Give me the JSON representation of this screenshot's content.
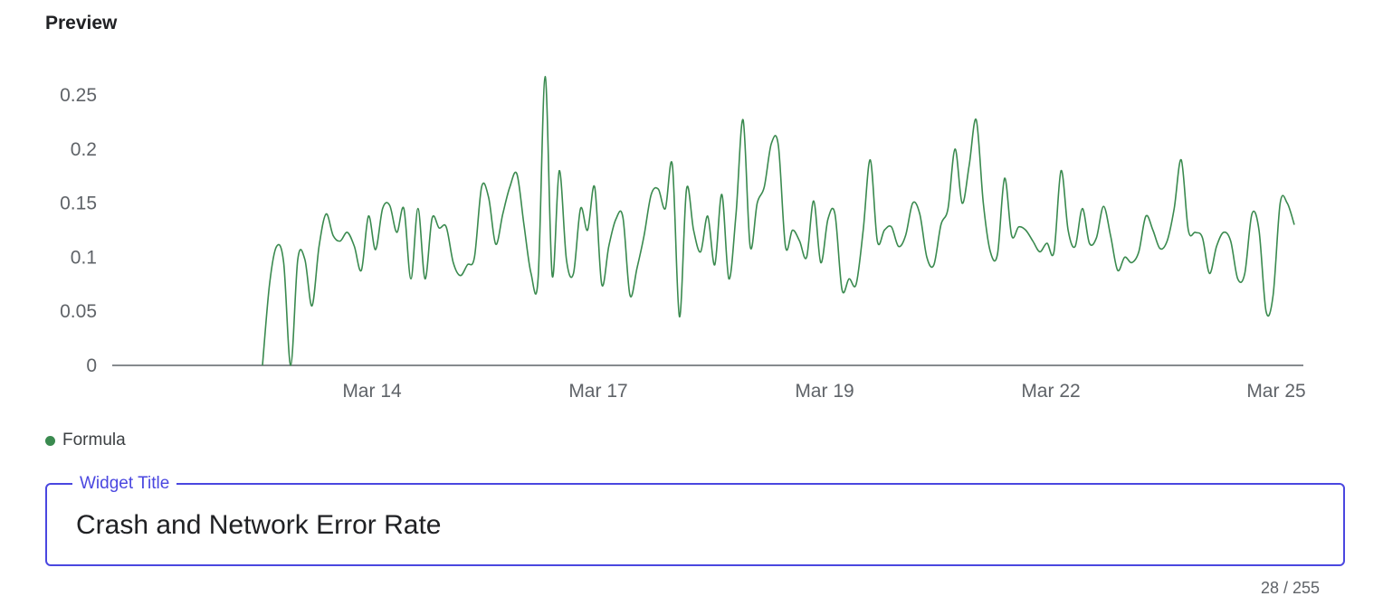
{
  "preview": {
    "title": "Preview"
  },
  "chart_data": {
    "type": "line",
    "title": "",
    "xlabel": "",
    "ylabel": "",
    "x_tick_labels": [
      "Mar 14",
      "Mar 17",
      "Mar 19",
      "Mar 22",
      "Mar 25"
    ],
    "y_tick_labels": [
      "0",
      "0.05",
      "0.1",
      "0.15",
      "0.2",
      "0.25"
    ],
    "ylim": [
      0,
      0.27
    ],
    "grid": false,
    "legend_position": "bottom-left",
    "series": [
      {
        "name": "Formula",
        "color": "#3a8a4f",
        "values": [
          0,
          0,
          0,
          0,
          0,
          0,
          0,
          0,
          0,
          0,
          0,
          0,
          0,
          0,
          0,
          0,
          0,
          0,
          0,
          0,
          0,
          0,
          0.075,
          0.11,
          0.095,
          0,
          0.098,
          0.098,
          0.055,
          0.11,
          0.14,
          0.12,
          0.115,
          0.123,
          0.11,
          0.088,
          0.138,
          0.107,
          0.145,
          0.148,
          0.123,
          0.145,
          0.08,
          0.145,
          0.08,
          0.136,
          0.127,
          0.128,
          0.095,
          0.083,
          0.093,
          0.1,
          0.165,
          0.155,
          0.112,
          0.14,
          0.165,
          0.177,
          0.13,
          0.085,
          0.08,
          0.267,
          0.083,
          0.18,
          0.098,
          0.085,
          0.145,
          0.125,
          0.165,
          0.075,
          0.11,
          0.135,
          0.137,
          0.065,
          0.09,
          0.12,
          0.158,
          0.163,
          0.145,
          0.185,
          0.045,
          0.163,
          0.125,
          0.105,
          0.138,
          0.093,
          0.158,
          0.08,
          0.14,
          0.227,
          0.11,
          0.15,
          0.165,
          0.205,
          0.203,
          0.11,
          0.125,
          0.115,
          0.1,
          0.152,
          0.095,
          0.135,
          0.14,
          0.07,
          0.08,
          0.075,
          0.125,
          0.19,
          0.115,
          0.125,
          0.128,
          0.11,
          0.12,
          0.15,
          0.14,
          0.1,
          0.093,
          0.13,
          0.145,
          0.2,
          0.15,
          0.185,
          0.227,
          0.15,
          0.105,
          0.103,
          0.173,
          0.12,
          0.128,
          0.125,
          0.115,
          0.105,
          0.113,
          0.105,
          0.18,
          0.125,
          0.11,
          0.145,
          0.113,
          0.118,
          0.147,
          0.12,
          0.088,
          0.1,
          0.095,
          0.105,
          0.138,
          0.125,
          0.108,
          0.115,
          0.145,
          0.19,
          0.125,
          0.123,
          0.118,
          0.085,
          0.11,
          0.123,
          0.115,
          0.08,
          0.085,
          0.14,
          0.125,
          0.05,
          0.065,
          0.15,
          0.15,
          0.13
        ]
      }
    ]
  },
  "widget_title_field": {
    "label": "Widget Title",
    "value": "Crash and Network Error Rate",
    "char_count": "28 / 255"
  }
}
